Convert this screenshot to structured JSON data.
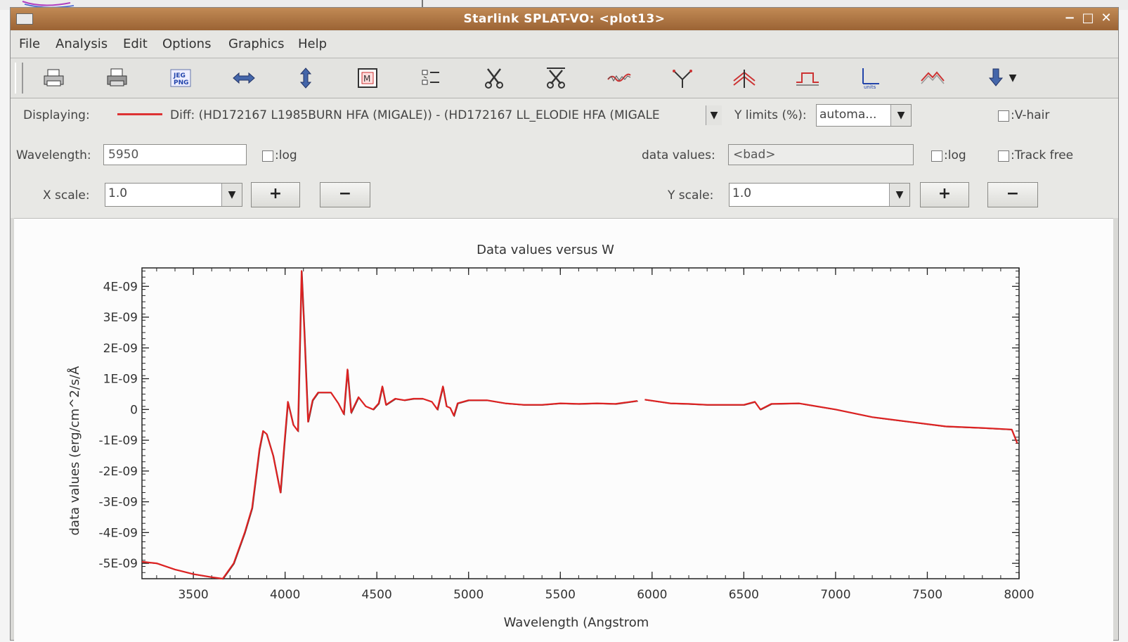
{
  "window": {
    "title": "Starlink SPLAT-VO: <plot13>"
  },
  "menu": [
    "File",
    "Analysis",
    "Edit",
    "Options",
    "Graphics",
    "Help"
  ],
  "toolbar": [
    {
      "icon": "print-icon"
    },
    {
      "icon": "print-file-icon"
    },
    {
      "icon": "jpeg-png-export-icon"
    },
    {
      "icon": "fit-width-icon"
    },
    {
      "icon": "fit-height-icon"
    },
    {
      "icon": "zoom-region-icon"
    },
    {
      "icon": "list-icon"
    },
    {
      "icon": "cut-icon"
    },
    {
      "icon": "cut-all-icon"
    },
    {
      "icon": "smooth-icon"
    },
    {
      "icon": "line-fit-icon"
    },
    {
      "icon": "stack-icon"
    },
    {
      "icon": "filter-region-icon"
    },
    {
      "icon": "units-icon"
    },
    {
      "icon": "flux-icon"
    },
    {
      "icon": "download-icon"
    }
  ],
  "controls": {
    "displaying_label": "Displaying:",
    "spectrum_name": "Diff: (HD172167 L1985BURN HFA (MIGALE)) - (HD172167 LL_ELODIE HFA (MIGALE",
    "ylimits_label": "Y limits (%):",
    "ylimits_value": "automa...",
    "vhair_label": ":V-hair",
    "wavelength_label": "Wavelength:",
    "wavelength_value": "5950",
    "log_label": ":log",
    "datavalues_label": "data values:",
    "datavalues_value": "<bad>",
    "log2_label": ":log",
    "trackfree_label": ":Track free",
    "xscale_label": "X scale:",
    "xscale_value": "1.0",
    "yscale_label": "Y scale:",
    "yscale_value": "1.0",
    "plus": "+",
    "minus": "−",
    "colors": {
      "spectrum": "#dd2222"
    }
  },
  "chart_data": {
    "type": "line",
    "title": "Data values versus W",
    "xlabel": "Wavelength (Angstrom",
    "ylabel": "data values (erg/cm^2/s/Å",
    "xlim": [
      3220,
      8000
    ],
    "ylim": [
      -5.5e-09,
      4.6e-09
    ],
    "xticks": [
      3500,
      4000,
      4500,
      5000,
      5500,
      6000,
      6500,
      7000,
      7500,
      8000
    ],
    "yticks": [
      -5e-09,
      -4e-09,
      -3e-09,
      -2e-09,
      -1e-09,
      0,
      1e-09,
      2e-09,
      3e-09,
      4e-09
    ],
    "xtick_labels": [
      "3500",
      "4000",
      "4500",
      "5000",
      "5500",
      "6000",
      "6500",
      "7000",
      "7500",
      "8000"
    ],
    "ytick_labels": [
      "-5E-09",
      "-4E-09",
      "-3E-09",
      "-2E-09",
      "-1E-09",
      "0",
      "1E-09",
      "2E-09",
      "3E-09",
      "4E-09"
    ],
    "grid": false,
    "series": [
      {
        "color": "#dd2222",
        "segments": [
          [
            [
              3220,
              -4.95e-09
            ],
            [
              3300,
              -5e-09
            ],
            [
              3400,
              -5.2e-09
            ],
            [
              3500,
              -5.35e-09
            ],
            [
              3600,
              -5.45e-09
            ],
            [
              3660,
              -5.5e-09
            ],
            [
              3720,
              -5e-09
            ],
            [
              3780,
              -4e-09
            ],
            [
              3820,
              -3.2e-09
            ],
            [
              3860,
              -1.3e-09
            ],
            [
              3880,
              -7e-10
            ],
            [
              3900,
              -8e-10
            ],
            [
              3935,
              -1.5e-09
            ],
            [
              3975,
              -2.7e-09
            ],
            [
              3995,
              -1.2e-09
            ],
            [
              4015,
              2.5e-10
            ],
            [
              4045,
              -5e-10
            ],
            [
              4070,
              -7e-10
            ],
            [
              4090,
              4.5e-09
            ],
            [
              4105,
              2.5e-09
            ],
            [
              4125,
              -4e-10
            ],
            [
              4150,
              3e-10
            ],
            [
              4180,
              5.5e-10
            ],
            [
              4250,
              5.5e-10
            ],
            [
              4290,
              2e-10
            ],
            [
              4320,
              -1.5e-10
            ],
            [
              4340,
              1.3e-09
            ],
            [
              4360,
              -1e-10
            ],
            [
              4400,
              4e-10
            ],
            [
              4440,
              1e-10
            ],
            [
              4480,
              0.0
            ],
            [
              4510,
              2e-10
            ],
            [
              4530,
              7.5e-10
            ],
            [
              4550,
              1.5e-10
            ],
            [
              4600,
              3.5e-10
            ],
            [
              4650,
              3e-10
            ],
            [
              4700,
              3.5e-10
            ],
            [
              4750,
              3.5e-10
            ],
            [
              4800,
              2.5e-10
            ],
            [
              4830,
              0.0
            ],
            [
              4860,
              7.5e-10
            ],
            [
              4880,
              1e-10
            ],
            [
              4900,
              5e-11
            ],
            [
              4920,
              -2e-10
            ],
            [
              4940,
              2e-10
            ],
            [
              5000,
              3e-10
            ],
            [
              5100,
              3e-10
            ],
            [
              5200,
              2e-10
            ],
            [
              5300,
              1.5e-10
            ],
            [
              5400,
              1.5e-10
            ],
            [
              5500,
              2e-10
            ],
            [
              5600,
              1.8e-10
            ],
            [
              5700,
              2e-10
            ],
            [
              5800,
              1.8e-10
            ],
            [
              5920,
              2.8e-10
            ]
          ],
          [
            [
              5960,
              3.2e-10
            ],
            [
              6100,
              2e-10
            ],
            [
              6200,
              1.8e-10
            ],
            [
              6300,
              1.5e-10
            ],
            [
              6400,
              1.5e-10
            ],
            [
              6500,
              1.5e-10
            ],
            [
              6560,
              2.5e-10
            ],
            [
              6590,
              0.0
            ],
            [
              6650,
              1.8e-10
            ],
            [
              6800,
              2e-10
            ],
            [
              7000,
              0.0
            ],
            [
              7200,
              -2.5e-10
            ],
            [
              7400,
              -4e-10
            ],
            [
              7600,
              -5.5e-10
            ],
            [
              7800,
              -6e-10
            ],
            [
              7960,
              -6.5e-10
            ],
            [
              7990,
              -1.1e-09
            ]
          ]
        ]
      }
    ]
  }
}
